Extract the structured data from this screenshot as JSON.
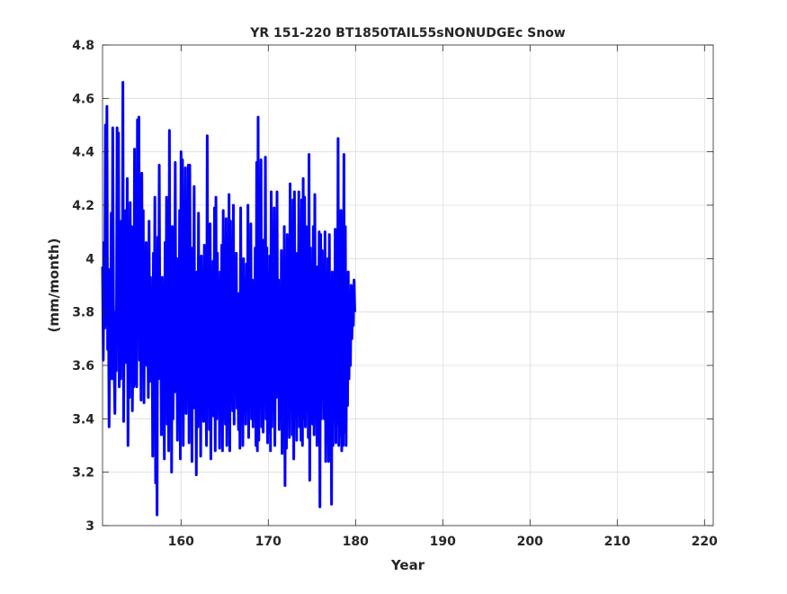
{
  "chart_data": {
    "type": "line",
    "title": "YR 151-220 BT1850TAIL55sNONUDGEc Snow",
    "xlabel": "Year",
    "ylabel": "(mm/month)",
    "xlim": [
      151,
      221
    ],
    "ylim": [
      3.0,
      4.8
    ],
    "xticks": [
      160,
      170,
      180,
      190,
      200,
      210,
      220
    ],
    "xtick_labels": [
      "160",
      "170",
      "180",
      "190",
      "200",
      "210",
      "220"
    ],
    "yticks": [
      3.0,
      3.2,
      3.4,
      3.6,
      3.8,
      4.0,
      4.2,
      4.4,
      4.6,
      4.8
    ],
    "ytick_labels": [
      "3",
      "3.2",
      "3.4",
      "3.6",
      "3.8",
      "4",
      "4.2",
      "4.4",
      "4.6",
      "4.8"
    ],
    "grid": true,
    "series": [
      {
        "color": "#0000ff",
        "sampling": "monthly",
        "x_start": 151.0,
        "x_step": 0.08333,
        "y": [
          3.97,
          3.62,
          4.06,
          3.74,
          4.5,
          3.75,
          4.57,
          3.66,
          3.96,
          3.37,
          3.7,
          3.6,
          4.17,
          3.55,
          4.49,
          3.85,
          3.6,
          3.42,
          3.8,
          3.58,
          4.49,
          3.7,
          4.47,
          3.52,
          3.77,
          3.55,
          4.14,
          3.63,
          4.66,
          3.39,
          3.98,
          3.7,
          4.18,
          3.61,
          4.3,
          3.3,
          3.86,
          3.48,
          4.21,
          3.6,
          4.12,
          3.43,
          3.72,
          3.52,
          4.41,
          3.53,
          4.16,
          3.52,
          4.52,
          3.8,
          4.53,
          3.62,
          3.95,
          3.47,
          4.32,
          3.61,
          4.18,
          3.46,
          3.95,
          3.66,
          4.06,
          3.6,
          3.84,
          3.48,
          4.14,
          3.54,
          3.93,
          3.6,
          3.84,
          3.26,
          4.02,
          3.65,
          4.23,
          3.16,
          3.64,
          3.04,
          4.08,
          3.55,
          4.35,
          3.61,
          3.86,
          3.34,
          3.93,
          3.59,
          3.72,
          3.25,
          4.06,
          3.45,
          4.23,
          3.38,
          3.92,
          3.28,
          4.48,
          3.53,
          4.11,
          3.2,
          4.12,
          3.4,
          3.81,
          3.5,
          4.36,
          3.52,
          4.0,
          3.32,
          3.84,
          3.43,
          4.18,
          3.25,
          4.4,
          3.54,
          4.37,
          3.3,
          3.94,
          3.49,
          4.34,
          3.42,
          3.77,
          3.54,
          4.35,
          3.31,
          4.35,
          3.62,
          4.04,
          3.24,
          3.92,
          3.62,
          4.27,
          3.44,
          3.74,
          3.19,
          3.95,
          3.37,
          4.17,
          3.48,
          3.92,
          3.26,
          4.01,
          3.46,
          3.74,
          3.39,
          4.05,
          3.49,
          3.62,
          3.3,
          4.46,
          3.56,
          4.01,
          3.36,
          4.13,
          3.25,
          3.82,
          3.49,
          3.99,
          3.41,
          4.19,
          3.28,
          4.23,
          3.4,
          4.02,
          3.52,
          3.91,
          3.29,
          3.95,
          3.46,
          4.05,
          3.28,
          4.18,
          3.4,
          3.78,
          3.38,
          4.15,
          3.3,
          3.94,
          3.4,
          4.24,
          3.28,
          4.14,
          3.48,
          3.82,
          3.43,
          4.2,
          3.38,
          3.95,
          3.52,
          4.02,
          3.44,
          3.74,
          3.36,
          3.87,
          3.29,
          4.19,
          3.45,
          3.96,
          3.3,
          4.0,
          3.5,
          3.81,
          3.38,
          3.98,
          3.43,
          4.2,
          3.33,
          3.9,
          3.47,
          4.13,
          3.4,
          3.92,
          3.37,
          3.8,
          3.45,
          4.04,
          3.3,
          4.36,
          3.28,
          4.53,
          3.32,
          3.99,
          3.44,
          4.37,
          3.37,
          4.07,
          3.35,
          3.79,
          3.47,
          4.38,
          3.4,
          4.04,
          3.31,
          3.94,
          3.35,
          4.01,
          3.28,
          4.25,
          3.37,
          3.84,
          3.45,
          4.19,
          3.3,
          3.81,
          3.48,
          4.25,
          3.5,
          3.92,
          3.36,
          3.82,
          3.45,
          4.03,
          3.27,
          3.82,
          3.49,
          4.12,
          3.15,
          3.99,
          3.29,
          4.09,
          3.4,
          3.85,
          3.33,
          4.28,
          3.47,
          3.85,
          3.34,
          4.22,
          3.25,
          4.25,
          3.41,
          4.02,
          3.32,
          3.81,
          3.44,
          4.25,
          3.37,
          3.95,
          3.32,
          4.22,
          3.3,
          4.3,
          3.4,
          4.23,
          3.37,
          4.12,
          3.49,
          3.88,
          3.33,
          4.39,
          3.17,
          4.04,
          3.44,
          3.92,
          3.38,
          4.12,
          3.34,
          4.24,
          3.41,
          3.88,
          3.3,
          3.97,
          3.49,
          4.1,
          3.07,
          4.09,
          3.4,
          4.03,
          3.48,
          3.93,
          3.4,
          4.1,
          3.24,
          3.73,
          3.36,
          4.0,
          3.24,
          4.09,
          3.32,
          3.84,
          3.08,
          3.95,
          3.3,
          3.9,
          3.44,
          4.11,
          3.31,
          4.1,
          3.38,
          4.45,
          3.3,
          3.89,
          3.34,
          4.18,
          3.28,
          3.85,
          3.3,
          4.39,
          3.35,
          4.12,
          3.3,
          3.88,
          3.45,
          3.95,
          3.55,
          3.82,
          3.6,
          3.9,
          3.7,
          3.85,
          3.75,
          3.92,
          3.8
        ]
      }
    ]
  }
}
